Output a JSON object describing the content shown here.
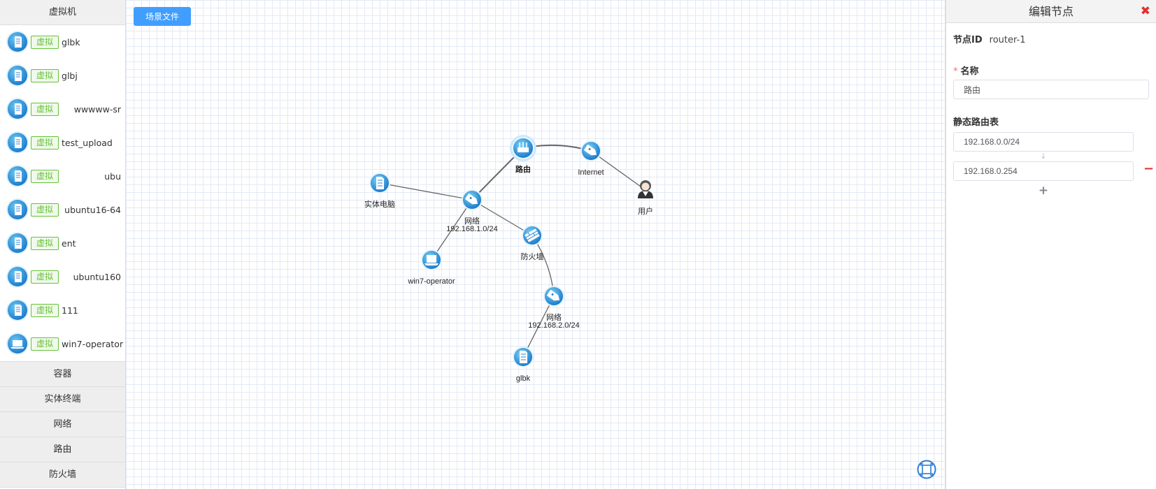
{
  "sidebar": {
    "vm_header": "虚拟机",
    "vm_tag": "虚拟",
    "vms": [
      {
        "name": "glbk",
        "align": "left",
        "icon": "server-icon"
      },
      {
        "name": "glbj",
        "align": "left",
        "icon": "server-icon"
      },
      {
        "name": "wwwww-sr",
        "align": "right",
        "icon": "server-icon"
      },
      {
        "name": "test_upload",
        "align": "left",
        "icon": "server-icon"
      },
      {
        "name": "ubu",
        "align": "right",
        "icon": "server-icon"
      },
      {
        "name": "ubuntu16-64",
        "align": "right",
        "icon": "server-icon"
      },
      {
        "name": "ent",
        "align": "left",
        "icon": "server-icon"
      },
      {
        "name": "ubuntu160",
        "align": "right",
        "icon": "server-icon"
      },
      {
        "name": "111",
        "align": "left",
        "icon": "server-icon"
      },
      {
        "name": "win7-operator",
        "align": "left",
        "icon": "laptop-icon"
      }
    ],
    "categories": [
      "容器",
      "实体终端",
      "网络",
      "路由",
      "防火墙"
    ]
  },
  "toolbar": {
    "scene_button": "场景文件"
  },
  "topology": {
    "nodes": [
      {
        "id": "router",
        "label": "路由",
        "label2": "",
        "kind": "router",
        "bold": true
      },
      {
        "id": "internet",
        "label": "Internet",
        "label2": "",
        "kind": "network",
        "bold": false
      },
      {
        "id": "user",
        "label": "用户",
        "label2": "",
        "kind": "user",
        "bold": false
      },
      {
        "id": "pc",
        "label": "实体电脑",
        "label2": "",
        "kind": "server",
        "bold": false
      },
      {
        "id": "net1",
        "label": "网络",
        "label2": "192.168.1.0/24",
        "kind": "network",
        "bold": false
      },
      {
        "id": "firewall",
        "label": "防火墙",
        "label2": "",
        "kind": "firewall",
        "bold": false
      },
      {
        "id": "win7",
        "label": "win7-operator",
        "label2": "",
        "kind": "laptop",
        "bold": false
      },
      {
        "id": "net2",
        "label": "网络",
        "label2": "192.168.2.0/24",
        "kind": "network",
        "bold": false
      },
      {
        "id": "glbk",
        "label": "glbk",
        "label2": "",
        "kind": "server",
        "bold": false
      }
    ],
    "links": [
      [
        "router",
        "internet"
      ],
      [
        "internet",
        "user"
      ],
      [
        "router",
        "net1"
      ],
      [
        "pc",
        "net1"
      ],
      [
        "net1",
        "win7"
      ],
      [
        "net1",
        "firewall"
      ],
      [
        "firewall",
        "net2"
      ],
      [
        "net2",
        "glbk"
      ]
    ]
  },
  "panel": {
    "title": "编辑节点",
    "node_id_label": "节点ID",
    "node_id_value": "router-1",
    "name_label": "名称",
    "name_value": "路由",
    "routes_label": "静态路由表",
    "route_dest": "192.168.0.0/24",
    "route_gateway": "192.168.0.254",
    "colors": {
      "accent": "#409eff",
      "danger": "#e03131",
      "tag": "#67c23a"
    }
  }
}
